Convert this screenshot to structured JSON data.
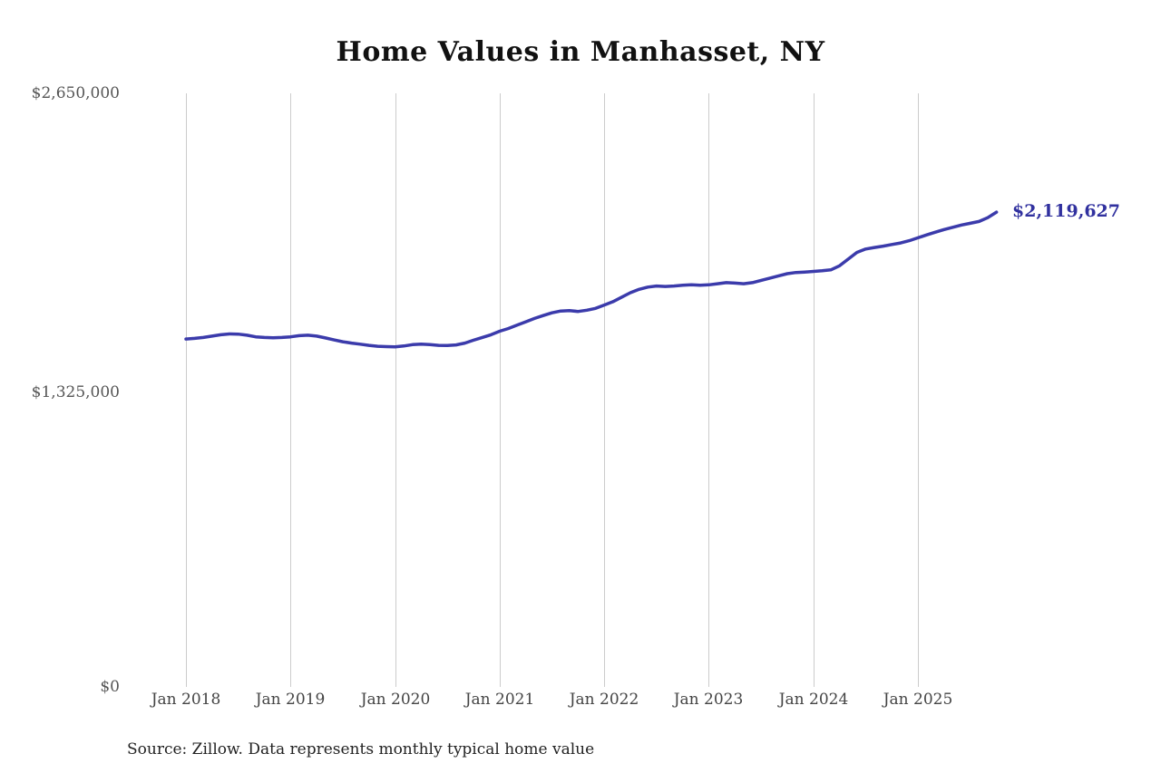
{
  "title": "Home Values in Manhasset, NY",
  "source_note": "Source: Zillow. Data represents monthly typical home value",
  "colors": {
    "line": "#3b3bab",
    "grid": "#cccccc",
    "axis_text": "#555555",
    "end_label_text": "#31319f"
  },
  "chart_data": {
    "type": "line",
    "title": "Home Values in Manhasset, NY",
    "ylabel": "",
    "xlabel": "",
    "ylim": [
      0,
      2650000
    ],
    "grid": "vertical-only",
    "legend": "none",
    "y_ticks": [
      2650000,
      1325000,
      0
    ],
    "y_tick_labels": [
      "$2,650,000",
      "$1,325,000",
      "$0"
    ],
    "x_tick_labels": [
      "Jan 2018",
      "Jan 2019",
      "Jan 2020",
      "Jan 2021",
      "Jan 2022",
      "Jan 2023",
      "Jan 2024",
      "Jan 2025"
    ],
    "last_value": 2119627,
    "last_value_label": "$2,119,627",
    "source": "Source: Zillow. Data represents monthly typical home value",
    "x": [
      "2018-01",
      "2018-02",
      "2018-03",
      "2018-04",
      "2018-05",
      "2018-06",
      "2018-07",
      "2018-08",
      "2018-09",
      "2018-10",
      "2018-11",
      "2018-12",
      "2019-01",
      "2019-02",
      "2019-03",
      "2019-04",
      "2019-05",
      "2019-06",
      "2019-07",
      "2019-08",
      "2019-09",
      "2019-10",
      "2019-11",
      "2019-12",
      "2020-01",
      "2020-02",
      "2020-03",
      "2020-04",
      "2020-05",
      "2020-06",
      "2020-07",
      "2020-08",
      "2020-09",
      "2020-10",
      "2020-11",
      "2020-12",
      "2021-01",
      "2021-02",
      "2021-03",
      "2021-04",
      "2021-05",
      "2021-06",
      "2021-07",
      "2021-08",
      "2021-09",
      "2021-10",
      "2021-11",
      "2021-12",
      "2022-01",
      "2022-02",
      "2022-03",
      "2022-04",
      "2022-05",
      "2022-06",
      "2022-07",
      "2022-08",
      "2022-09",
      "2022-10",
      "2022-11",
      "2022-12",
      "2023-01",
      "2023-02",
      "2023-03",
      "2023-04",
      "2023-05",
      "2023-06",
      "2023-07",
      "2023-08",
      "2023-09",
      "2023-10",
      "2023-11",
      "2023-12",
      "2024-01",
      "2024-02",
      "2024-03",
      "2024-04",
      "2024-05",
      "2024-06",
      "2024-07",
      "2024-08",
      "2024-09",
      "2024-10",
      "2024-11",
      "2024-12",
      "2025-01",
      "2025-02",
      "2025-03",
      "2025-04",
      "2025-05",
      "2025-06",
      "2025-07",
      "2025-08",
      "2025-09",
      "2025-10"
    ],
    "values": [
      1553000,
      1556000,
      1560000,
      1566000,
      1572000,
      1576000,
      1575000,
      1570000,
      1563000,
      1560000,
      1559000,
      1560000,
      1563000,
      1568000,
      1570000,
      1566000,
      1558000,
      1549000,
      1541000,
      1535000,
      1530000,
      1525000,
      1521000,
      1519000,
      1518000,
      1522000,
      1528000,
      1530000,
      1528000,
      1525000,
      1524000,
      1527000,
      1535000,
      1548000,
      1560000,
      1572000,
      1588000,
      1600000,
      1615000,
      1630000,
      1645000,
      1658000,
      1670000,
      1678000,
      1680000,
      1676000,
      1682000,
      1690000,
      1705000,
      1720000,
      1740000,
      1760000,
      1775000,
      1785000,
      1790000,
      1788000,
      1790000,
      1793000,
      1795000,
      1793000,
      1795000,
      1800000,
      1805000,
      1803000,
      1800000,
      1805000,
      1815000,
      1825000,
      1835000,
      1845000,
      1850000,
      1852000,
      1855000,
      1858000,
      1862000,
      1880000,
      1910000,
      1940000,
      1955000,
      1962000,
      1968000,
      1975000,
      1982000,
      1992000,
      2005000,
      2018000,
      2030000,
      2042000,
      2052000,
      2062000,
      2070000,
      2078000,
      2095000,
      2119627
    ]
  }
}
